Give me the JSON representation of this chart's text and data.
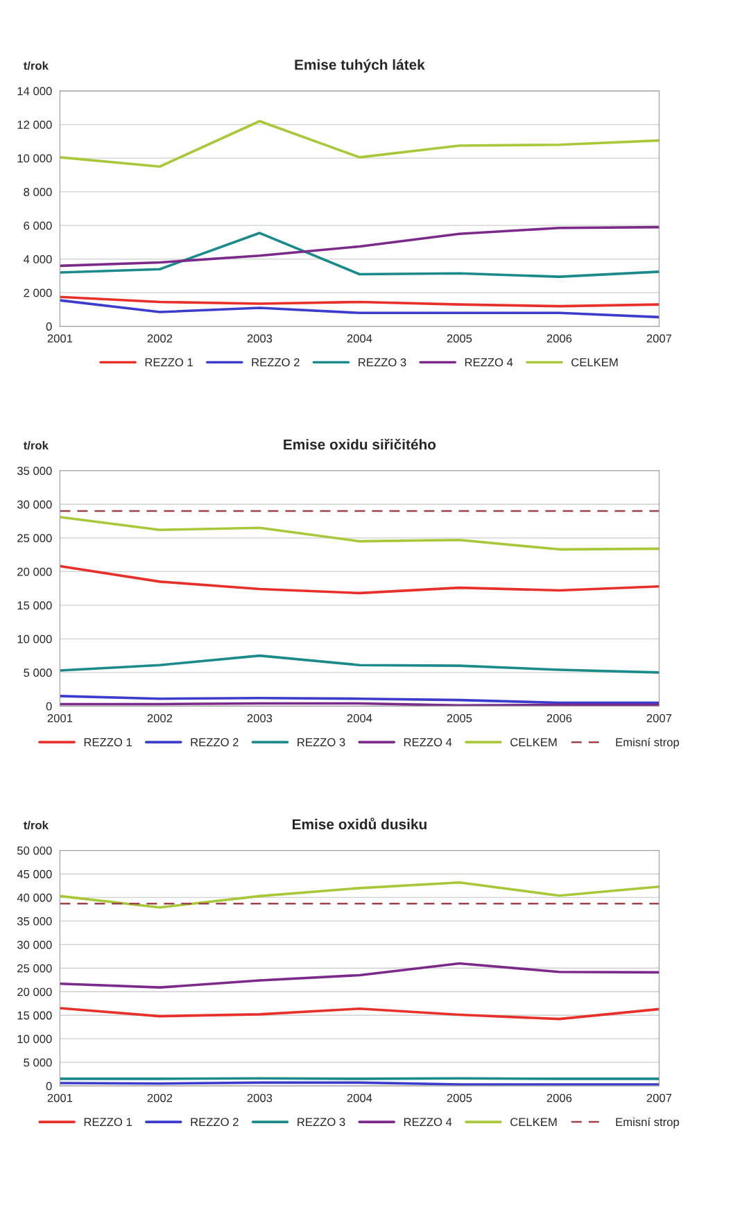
{
  "chart_data": [
    {
      "type": "line",
      "title": "Emise tuhých látek",
      "ylabel": "t/rok",
      "x": [
        2001,
        2002,
        2003,
        2004,
        2005,
        2006,
        2007
      ],
      "xlim": [
        2001,
        2007
      ],
      "xticks": [
        2001,
        2002,
        2003,
        2004,
        2005,
        2006,
        2007
      ],
      "ylim": [
        0,
        14000
      ],
      "yticks": [
        0,
        {
          "value": 2000,
          "label": "2 000"
        },
        {
          "value": 4000,
          "label": "4 000"
        },
        {
          "value": 6000,
          "label": "6 000"
        },
        {
          "value": 8000,
          "label": "8 000"
        },
        {
          "value": 10000,
          "label": "10 000"
        },
        {
          "value": 12000,
          "label": "12 000"
        },
        {
          "value": 14000,
          "label": "14 000"
        }
      ],
      "grid": "y",
      "legend": "bottom",
      "marker": "none",
      "line_style": "solid",
      "series": [
        {
          "name": "REZZO 1",
          "color": "#e8302a",
          "values": [
            1750,
            1450,
            1350,
            1450,
            1300,
            1200,
            1300
          ]
        },
        {
          "name": "REZZO 2",
          "color": "#3c3ccc",
          "values": [
            1550,
            850,
            1100,
            800,
            800,
            800,
            550
          ]
        },
        {
          "name": "REZZO 3",
          "color": "#1a8a8a",
          "values": [
            3200,
            3400,
            5550,
            3100,
            3150,
            2950,
            3250
          ]
        },
        {
          "name": "REZZO 4",
          "color": "#7b2a8a",
          "values": [
            3600,
            3800,
            4200,
            4750,
            5500,
            5850,
            5900
          ]
        },
        {
          "name": "CELKEM",
          "color": "#a8c83a",
          "values": [
            10050,
            9500,
            12200,
            10050,
            10750,
            10800,
            11050
          ]
        }
      ]
    },
    {
      "type": "line",
      "title": "Emise oxidu siřičitého",
      "ylabel": "t/rok",
      "x": [
        2001,
        2002,
        2003,
        2004,
        2005,
        2006,
        2007
      ],
      "xlim": [
        2001,
        2007
      ],
      "xticks": [
        2001,
        2002,
        2003,
        2004,
        2005,
        2006,
        2007
      ],
      "ylim": [
        0,
        35000
      ],
      "yticks": [
        0,
        {
          "value": 5000,
          "label": "5 000"
        },
        {
          "value": 10000,
          "label": "10 000"
        },
        {
          "value": 15000,
          "label": "15 000"
        },
        {
          "value": 20000,
          "label": "20 000"
        },
        {
          "value": 25000,
          "label": "25 000"
        },
        {
          "value": 30000,
          "label": "30 000"
        },
        {
          "value": 35000,
          "label": "35 000"
        }
      ],
      "grid": "y",
      "legend": "bottom",
      "marker": "none",
      "line_style": "solid",
      "series": [
        {
          "name": "REZZO 1",
          "color": "#e8302a",
          "values": [
            20800,
            18500,
            17400,
            16800,
            17600,
            17200,
            17800
          ]
        },
        {
          "name": "REZZO 2",
          "color": "#3c3ccc",
          "values": [
            1500,
            1100,
            1200,
            1100,
            900,
            500,
            500
          ]
        },
        {
          "name": "REZZO 3",
          "color": "#1a8a8a",
          "values": [
            5300,
            6100,
            7500,
            6100,
            6000,
            5400,
            5000
          ]
        },
        {
          "name": "REZZO 4",
          "color": "#7b2a8a",
          "values": [
            300,
            300,
            400,
            400,
            100,
            200,
            200
          ]
        },
        {
          "name": "CELKEM",
          "color": "#a8c83a",
          "values": [
            28100,
            26200,
            26500,
            24500,
            24700,
            23300,
            23400
          ]
        }
      ],
      "ref_lines": [
        {
          "axis": "y",
          "value": 29000,
          "label": "Emisní strop",
          "color": "#a0404a",
          "line_style": "dashed"
        }
      ]
    },
    {
      "type": "line",
      "title": "Emise oxidů dusiku",
      "ylabel": "t/rok",
      "x": [
        2001,
        2002,
        2003,
        2004,
        2005,
        2006,
        2007
      ],
      "xlim": [
        2001,
        2007
      ],
      "xticks": [
        2001,
        2002,
        2003,
        2004,
        2005,
        2006,
        2007
      ],
      "ylim": [
        0,
        50000
      ],
      "yticks": [
        0,
        {
          "value": 5000,
          "label": "5 000"
        },
        {
          "value": 10000,
          "label": "10 000"
        },
        {
          "value": 15000,
          "label": "15 000"
        },
        {
          "value": 20000,
          "label": "20 000"
        },
        {
          "value": 25000,
          "label": "25 000"
        },
        {
          "value": 30000,
          "label": "30 000"
        },
        {
          "value": 35000,
          "label": "35 000"
        },
        {
          "value": 40000,
          "label": "40 000"
        },
        {
          "value": 45000,
          "label": "45 000"
        },
        {
          "value": 50000,
          "label": "50 000"
        }
      ],
      "grid": "y",
      "legend": "bottom",
      "marker": "none",
      "line_style": "solid",
      "series": [
        {
          "name": "REZZO 1",
          "color": "#e8302a",
          "values": [
            16500,
            14800,
            15200,
            16400,
            15100,
            14200,
            16300
          ]
        },
        {
          "name": "REZZO 2",
          "color": "#3c3ccc",
          "values": [
            600,
            500,
            700,
            700,
            300,
            300,
            300
          ]
        },
        {
          "name": "REZZO 3",
          "color": "#1a8a8a",
          "values": [
            1500,
            1500,
            1600,
            1500,
            1600,
            1500,
            1500
          ]
        },
        {
          "name": "REZZO 4",
          "color": "#7b2a8a",
          "values": [
            21700,
            20900,
            22400,
            23500,
            26000,
            24200,
            24100
          ]
        },
        {
          "name": "CELKEM",
          "color": "#a8c83a",
          "values": [
            40300,
            37900,
            40300,
            42000,
            43200,
            40400,
            42300
          ]
        }
      ],
      "ref_lines": [
        {
          "axis": "y",
          "value": 38700,
          "label": "Emisní strop",
          "color": "#a0404a",
          "line_style": "dashed"
        }
      ]
    }
  ]
}
